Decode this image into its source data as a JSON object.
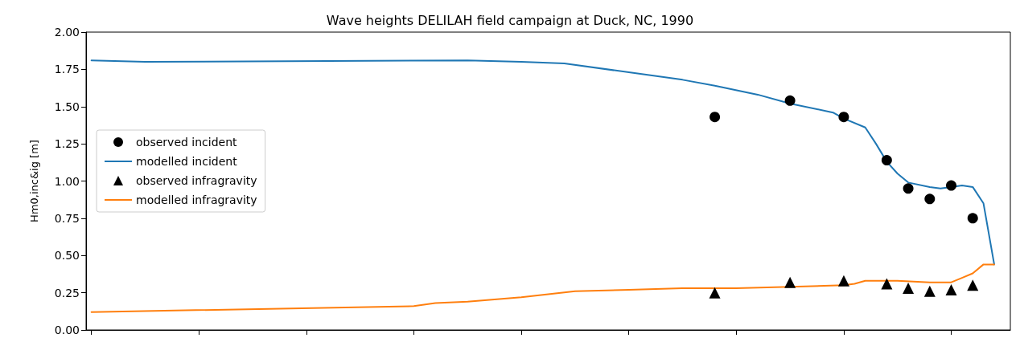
{
  "chart_data": {
    "type": "line",
    "title": "Wave heights DELILAH field campaign at Duck, NC, 1990",
    "ylabel": "Hm0,inc&ig [m]",
    "categories": [
      null,
      null,
      null,
      null,
      null,
      null,
      null,
      null,
      null,
      null,
      null,
      null,
      null,
      null,
      null,
      null,
      null,
      null,
      null,
      null,
      null,
      null,
      null,
      null,
      null,
      null,
      null,
      null,
      null,
      null,
      null,
      null,
      null,
      null,
      null,
      null,
      null,
      null,
      null,
      null,
      null,
      null,
      null,
      null,
      null,
      null,
      null,
      null,
      null,
      null,
      null,
      null,
      null,
      null,
      null,
      null,
      null,
      null,
      null,
      null,
      null,
      null,
      null,
      null,
      null,
      null,
      null,
      null,
      null,
      null,
      null,
      null,
      null,
      null,
      null,
      null,
      null,
      null,
      null,
      null,
      null,
      null,
      null,
      null,
      null,
      null
    ],
    "ylim": [
      0,
      2
    ],
    "yticks": [
      {
        "value": 0,
        "label": "0.00"
      },
      {
        "value": 0.25,
        "label": "0.25"
      },
      {
        "value": 0.5,
        "label": "0.50"
      },
      {
        "value": 0.75,
        "label": "0.75"
      },
      {
        "value": 1,
        "label": "1.00"
      },
      {
        "value": 1.25,
        "label": "1.25"
      },
      {
        "value": 1.5,
        "label": "1.50"
      },
      {
        "value": 1.75,
        "label": "1.75"
      },
      {
        "value": 2,
        "label": "2.00"
      }
    ],
    "tick_labels": "y",
    "grid": false,
    "legend": "left",
    "series": [
      {
        "name": "observed incident",
        "type": "scatter",
        "marker": "circle",
        "color": "#000000",
        "values": [
          null,
          null,
          null,
          null,
          null,
          null,
          null,
          null,
          null,
          null,
          null,
          null,
          null,
          null,
          null,
          null,
          null,
          null,
          null,
          null,
          null,
          null,
          null,
          null,
          null,
          null,
          null,
          null,
          null,
          null,
          null,
          null,
          null,
          null,
          null,
          null,
          null,
          null,
          null,
          null,
          null,
          null,
          null,
          null,
          null,
          null,
          null,
          null,
          null,
          null,
          null,
          null,
          null,
          null,
          null,
          null,
          null,
          null,
          1.43,
          null,
          null,
          null,
          null,
          null,
          null,
          1.54,
          null,
          null,
          null,
          null,
          1.43,
          null,
          null,
          null,
          1.14,
          null,
          0.95,
          null,
          0.88,
          null,
          0.97,
          null,
          0.75,
          null,
          null,
          null
        ]
      },
      {
        "name": "modelled incident",
        "type": "line",
        "marker": "none",
        "line_style": "solid",
        "color": "#1f77b4",
        "values": [
          1.81,
          null,
          null,
          null,
          null,
          1.8,
          null,
          null,
          null,
          null,
          null,
          null,
          null,
          null,
          null,
          null,
          null,
          null,
          null,
          null,
          null,
          null,
          null,
          null,
          null,
          null,
          null,
          null,
          null,
          null,
          null,
          null,
          null,
          null,
          null,
          1.81,
          null,
          null,
          null,
          null,
          1.8,
          null,
          null,
          null,
          1.79,
          null,
          null,
          null,
          null,
          null,
          1.73,
          null,
          null,
          null,
          null,
          1.68,
          null,
          null,
          1.64,
          null,
          null,
          null,
          1.58,
          null,
          null,
          1.52,
          null,
          null,
          null,
          1.46,
          1.42,
          null,
          1.36,
          1.25,
          1.13,
          1.05,
          0.99,
          null,
          0.96,
          0.95,
          0.96,
          0.97,
          0.96,
          0.85,
          0.44,
          null
        ]
      },
      {
        "name": "observed infragravity",
        "type": "scatter",
        "marker": "triangle",
        "color": "#000000",
        "values": [
          null,
          null,
          null,
          null,
          null,
          null,
          null,
          null,
          null,
          null,
          null,
          null,
          null,
          null,
          null,
          null,
          null,
          null,
          null,
          null,
          null,
          null,
          null,
          null,
          null,
          null,
          null,
          null,
          null,
          null,
          null,
          null,
          null,
          null,
          null,
          null,
          null,
          null,
          null,
          null,
          null,
          null,
          null,
          null,
          null,
          null,
          null,
          null,
          null,
          null,
          null,
          null,
          null,
          null,
          null,
          null,
          null,
          null,
          0.25,
          null,
          null,
          null,
          null,
          null,
          null,
          0.32,
          null,
          null,
          null,
          null,
          0.33,
          null,
          null,
          null,
          0.31,
          null,
          0.28,
          null,
          0.26,
          null,
          0.27,
          null,
          0.3,
          null,
          null,
          null
        ]
      },
      {
        "name": "modelled infragravity",
        "type": "line",
        "marker": "none",
        "line_style": "solid",
        "color": "#ff7f0e",
        "values": [
          0.12,
          null,
          null,
          null,
          null,
          null,
          null,
          null,
          null,
          null,
          null,
          null,
          null,
          null,
          null,
          null,
          null,
          null,
          null,
          null,
          null,
          null,
          null,
          null,
          null,
          null,
          null,
          null,
          null,
          null,
          0.16,
          null,
          0.18,
          null,
          null,
          0.19,
          null,
          null,
          null,
          null,
          0.22,
          null,
          null,
          null,
          null,
          0.26,
          null,
          null,
          null,
          null,
          0.27,
          null,
          null,
          null,
          null,
          0.28,
          null,
          null,
          null,
          null,
          0.28,
          null,
          null,
          null,
          null,
          0.29,
          null,
          null,
          null,
          null,
          0.3,
          0.31,
          0.33,
          null,
          null,
          0.33,
          null,
          null,
          0.32,
          null,
          0.32,
          0.35,
          0.38,
          0.44,
          0.44,
          null
        ]
      }
    ]
  }
}
